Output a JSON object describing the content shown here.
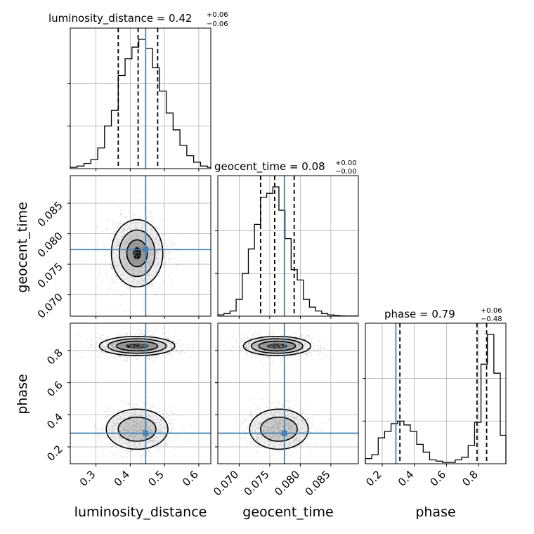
{
  "colors": {
    "truth": "#4682b4",
    "line": "#000000",
    "grid": "#b0b0b0",
    "point": "#9a9a9a",
    "shade_light": "#ededed",
    "shade_mid": "#c8c8c8",
    "shade_dark": "#8c8c8c"
  },
  "chart_data": {
    "type": "corner",
    "parameters": [
      "luminosity_distance",
      "geocent_time",
      "phase"
    ],
    "axis_labels": [
      "luminosity_distance",
      "geocent_time",
      "phase"
    ],
    "titles": [
      {
        "main": "luminosity_distance = 0.42",
        "sup": "+0.06",
        "sub": "−0.06"
      },
      {
        "main": "geocent_time = 0.08",
        "sup": "+0.00",
        "sub": "−0.00"
      },
      {
        "main": "phase = 0.79",
        "sup": "+0.06",
        "sub": "−0.48"
      }
    ],
    "ranges": [
      [
        0.225,
        0.635
      ],
      [
        0.0665,
        0.0895
      ],
      [
        0.095,
        0.97
      ]
    ],
    "ticks": [
      [
        0.3,
        0.4,
        0.5,
        0.6
      ],
      [
        0.07,
        0.075,
        0.08,
        0.085
      ],
      [
        0.2,
        0.4,
        0.6,
        0.8
      ]
    ],
    "tick_labels": [
      [
        "0.3",
        "0.4",
        "0.5",
        "0.6"
      ],
      [
        "0.070",
        "0.075",
        "0.080",
        "0.085"
      ],
      [
        "0.2",
        "0.4",
        "0.6",
        "0.8"
      ]
    ],
    "truths": [
      0.445,
      0.0774,
      0.285
    ],
    "quantiles": [
      [
        0.365,
        0.423,
        0.48
      ],
      [
        0.0735,
        0.0758,
        0.079
      ],
      [
        0.31,
        0.79,
        0.85
      ]
    ],
    "histograms": [
      {
        "bin_edges": [
          0.225,
          0.245,
          0.265,
          0.285,
          0.305,
          0.325,
          0.345,
          0.365,
          0.385,
          0.405,
          0.425,
          0.445,
          0.465,
          0.485,
          0.505,
          0.525,
          0.545,
          0.565,
          0.585,
          0.605,
          0.625,
          0.635
        ],
        "counts": [
          0.01,
          0.02,
          0.04,
          0.07,
          0.16,
          0.33,
          0.45,
          0.72,
          0.85,
          0.94,
          1.0,
          0.93,
          0.78,
          0.6,
          0.43,
          0.3,
          0.18,
          0.1,
          0.05,
          0.02,
          0.01
        ]
      },
      {
        "bin_edges": [
          0.0665,
          0.0675,
          0.0685,
          0.0695,
          0.0705,
          0.0715,
          0.0725,
          0.0735,
          0.0745,
          0.0755,
          0.0765,
          0.0775,
          0.0785,
          0.0795,
          0.0805,
          0.0815,
          0.0825,
          0.0835,
          0.0845,
          0.0855,
          0.0865,
          0.0875,
          0.0895
        ],
        "counts": [
          0.01,
          0.02,
          0.04,
          0.13,
          0.33,
          0.52,
          0.71,
          0.92,
          0.95,
          1.0,
          0.82,
          0.6,
          0.36,
          0.28,
          0.13,
          0.07,
          0.04,
          0.02,
          0.01,
          0.005,
          0.002,
          0.001
        ]
      },
      {
        "bin_edges": [
          0.095,
          0.135,
          0.175,
          0.215,
          0.255,
          0.295,
          0.335,
          0.375,
          0.415,
          0.455,
          0.495,
          0.535,
          0.575,
          0.615,
          0.655,
          0.695,
          0.735,
          0.775,
          0.815,
          0.855,
          0.895,
          0.935,
          0.97
        ],
        "counts": [
          0.04,
          0.07,
          0.2,
          0.25,
          0.31,
          0.33,
          0.3,
          0.25,
          0.15,
          0.09,
          0.03,
          0.02,
          0.01,
          0.01,
          0.03,
          0.05,
          0.14,
          0.32,
          0.77,
          1.0,
          0.7,
          0.22
        ]
      }
    ],
    "contours": [
      {
        "x": 0,
        "y": 1,
        "blobs": [
          {
            "cx": 0.42,
            "cy": 0.0768,
            "r": [
              [
                0.075,
                0.0055
              ],
              [
                0.052,
                0.0038
              ],
              [
                0.03,
                0.0022
              ],
              [
                0.012,
                0.001
              ]
            ]
          }
        ]
      },
      {
        "x": 0,
        "y": 2,
        "blobs": [
          {
            "cx": 0.42,
            "cy": 0.828,
            "r": [
              [
                0.11,
                0.06
              ],
              [
                0.085,
                0.045
              ],
              [
                0.06,
                0.03
              ],
              [
                0.035,
                0.016
              ]
            ]
          },
          {
            "cx": 0.42,
            "cy": 0.31,
            "r": [
              [
                0.09,
                0.125
              ],
              [
                0.055,
                0.075
              ]
            ]
          }
        ]
      },
      {
        "x": 1,
        "y": 2,
        "blobs": [
          {
            "cx": 0.0762,
            "cy": 0.828,
            "r": [
              [
                0.0055,
                0.06
              ],
              [
                0.0042,
                0.045
              ],
              [
                0.003,
                0.03
              ],
              [
                0.0017,
                0.016
              ]
            ]
          },
          {
            "cx": 0.0765,
            "cy": 0.31,
            "r": [
              [
                0.0048,
                0.125
              ],
              [
                0.003,
                0.075
              ]
            ]
          }
        ]
      }
    ]
  }
}
